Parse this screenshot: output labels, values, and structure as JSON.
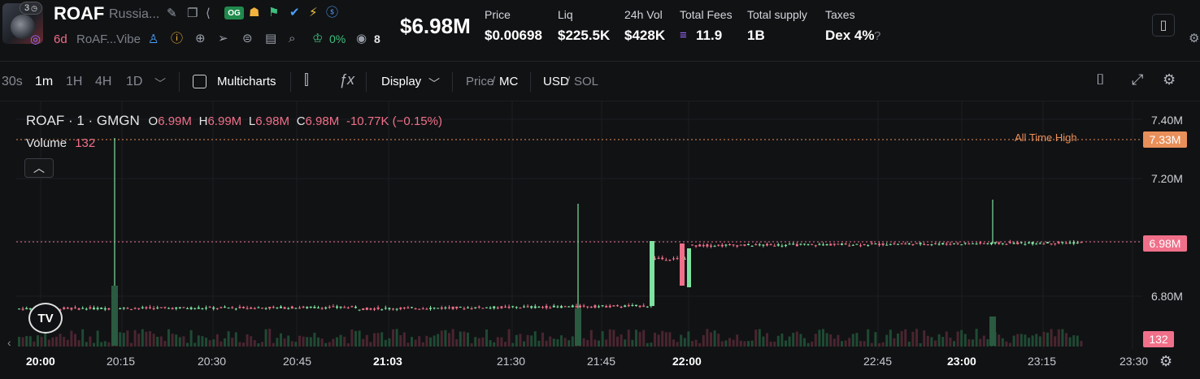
{
  "header": {
    "avatar_badge": "3",
    "symbol": "ROAF",
    "name": "Russia...",
    "og_badge": "OG",
    "age": "6d",
    "short_desc": "RoAF...Vibe",
    "top10_pct": "0%",
    "holders": "8",
    "market_cap": "$6.98M",
    "stats": [
      {
        "label": "Price",
        "value": "$0.00698"
      },
      {
        "label": "Liq",
        "value": "$225.5K"
      },
      {
        "label": "24h Vol",
        "value": "$428K"
      },
      {
        "label": "Total Fees",
        "value": "11.9"
      },
      {
        "label": "Total supply",
        "value": "1B"
      },
      {
        "label": "Taxes",
        "value": "Dex 4%"
      }
    ]
  },
  "toolbar": {
    "intervals": [
      "30s",
      "1m",
      "1H",
      "4H",
      "1D"
    ],
    "active_interval": "1m",
    "multicharts": "Multicharts",
    "display": "Display",
    "price": "Price",
    "mc": "MC",
    "usd": "USD",
    "sol": "SOL"
  },
  "legend": {
    "title": "ROAF · 1 · GMGN",
    "o_label": "O",
    "o": "6.99M",
    "h_label": "H",
    "h": "6.99M",
    "l_label": "L",
    "l": "6.98M",
    "c_label": "C",
    "c": "6.98M",
    "change": "-10.77K (−0.15%)",
    "volume_label": "Volume",
    "volume": "132"
  },
  "chart_data": {
    "type": "candlestick",
    "y_unit": "market cap (USD)",
    "ylim": [
      6.68,
      7.5
    ],
    "y_ticks": [
      "7.40M",
      "7.20M",
      "6.98M",
      "6.80M"
    ],
    "current_value_tag": "6.98M",
    "ath_value_tag": "7.33M",
    "ath_label": "All Time High",
    "volume_tag": "132",
    "x_ticks": [
      {
        "label": "20:00",
        "bold": true
      },
      {
        "label": "20:15",
        "bold": false
      },
      {
        "label": "20:30",
        "bold": false
      },
      {
        "label": "20:45",
        "bold": false
      },
      {
        "label": "21:03",
        "bold": true
      },
      {
        "label": "21:30",
        "bold": false
      },
      {
        "label": "21:45",
        "bold": false
      },
      {
        "label": "22:00",
        "bold": true
      },
      {
        "label": "22:45",
        "bold": false
      },
      {
        "label": "23:00",
        "bold": true
      },
      {
        "label": "23:15",
        "bold": false
      },
      {
        "label": "23:30",
        "bold": false
      }
    ],
    "colors": {
      "up": "#7ee2a0",
      "down": "#f0708a",
      "ath": "#e88f5a",
      "current": "#f0708a"
    }
  }
}
